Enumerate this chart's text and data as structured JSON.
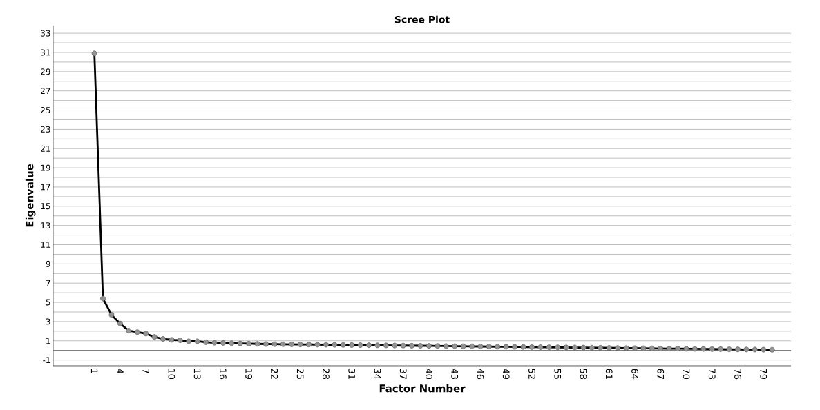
{
  "chart_data": {
    "type": "line",
    "title": "Scree Plot",
    "xlabel": "Factor Number",
    "ylabel": "Eigenvalue",
    "categories": [
      "1",
      null,
      null,
      "4",
      null,
      null,
      "7",
      null,
      null,
      "10",
      null,
      null,
      "13",
      null,
      null,
      "16",
      null,
      null,
      "19",
      null,
      null,
      "22",
      null,
      null,
      "25",
      null,
      null,
      "28",
      null,
      null,
      "31",
      null,
      null,
      "34",
      null,
      null,
      "37",
      null,
      null,
      "40",
      null,
      null,
      "43",
      null,
      null,
      "46",
      null,
      null,
      "49",
      null,
      null,
      "52",
      null,
      null,
      "55",
      null,
      null,
      "58",
      null,
      null,
      "61",
      null,
      null,
      "64",
      null,
      null,
      "67",
      null,
      null,
      "70",
      null,
      null,
      "73",
      null,
      null,
      "76",
      null,
      null,
      "79",
      null
    ],
    "series": [
      {
        "color": "#000000",
        "values": [
          30.9,
          5.4,
          3.7,
          2.8,
          2.05,
          1.9,
          1.75,
          1.4,
          1.2,
          1.1,
          1.05,
          0.95,
          0.95,
          0.85,
          0.8,
          0.78,
          0.75,
          0.72,
          0.7,
          0.68,
          0.66,
          0.65,
          0.64,
          0.63,
          0.62,
          0.61,
          0.6,
          0.59,
          0.58,
          0.57,
          0.56,
          0.55,
          0.54,
          0.53,
          0.52,
          0.51,
          0.5,
          0.49,
          0.48,
          0.47,
          0.46,
          0.45,
          0.44,
          0.43,
          0.42,
          0.41,
          0.4,
          0.39,
          0.38,
          0.37,
          0.36,
          0.35,
          0.34,
          0.33,
          0.32,
          0.31,
          0.3,
          0.29,
          0.28,
          0.27,
          0.26,
          0.25,
          0.24,
          0.23,
          0.22,
          0.21,
          0.2,
          0.19,
          0.18,
          0.17,
          0.16,
          0.15,
          0.14,
          0.13,
          0.12,
          0.11,
          0.1,
          0.09,
          0.08,
          0.07
        ]
      }
    ],
    "ylim": [
      -1.6,
      33.8
    ],
    "yticks": [
      -1,
      {
        "value": 0,
        "label": null
      },
      1,
      {
        "value": 2,
        "label": null
      },
      3,
      {
        "value": 4,
        "label": null
      },
      5,
      {
        "value": 6,
        "label": null
      },
      7,
      {
        "value": 8,
        "label": null
      },
      9,
      {
        "value": 10,
        "label": null
      },
      11,
      {
        "value": 12,
        "label": null
      },
      13,
      {
        "value": 14,
        "label": null
      },
      15,
      {
        "value": 16,
        "label": null
      },
      17,
      {
        "value": 18,
        "label": null
      },
      19,
      {
        "value": 20,
        "label": null
      },
      21,
      {
        "value": 22,
        "label": null
      },
      23,
      {
        "value": 24,
        "label": null
      },
      25,
      {
        "value": 26,
        "label": null
      },
      27,
      {
        "value": 28,
        "label": null
      },
      29,
      {
        "value": 30,
        "label": null
      },
      31,
      {
        "value": 32,
        "label": null
      },
      33
    ],
    "ref_lines": [
      {
        "axis": "y",
        "value": 0,
        "color": "#555555"
      }
    ],
    "grid": "y",
    "marker": "circle",
    "line_style": "solid"
  }
}
